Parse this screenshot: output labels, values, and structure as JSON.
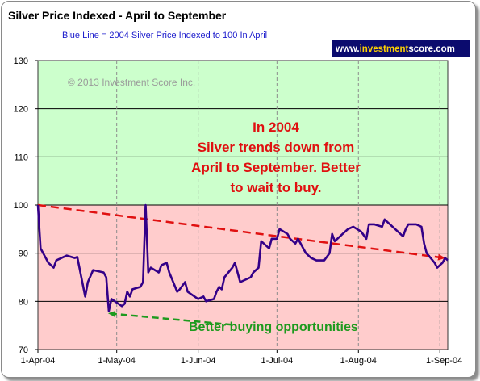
{
  "chart_data": {
    "type": "line",
    "title": "Silver Price Indexed - April to September",
    "subtitle": "Blue Line =  2004 Silver Price Indexed to 100 In April",
    "xlabel": "",
    "ylabel": "",
    "ylim": [
      70,
      130
    ],
    "yticks": [
      70,
      80,
      90,
      100,
      110,
      120,
      130
    ],
    "xlim": [
      "2004-04-01",
      "2004-09-04"
    ],
    "xticks": [
      {
        "date": "2004-04-01",
        "label": "1-Apr-04"
      },
      {
        "date": "2004-05-01",
        "label": "1-May-04"
      },
      {
        "date": "2004-06-01",
        "label": "1-Jun-04"
      },
      {
        "date": "2004-07-01",
        "label": "1-Jul-04"
      },
      {
        "date": "2004-08-01",
        "label": "1-Aug-04"
      },
      {
        "date": "2004-09-01",
        "label": "1-Sep-04"
      }
    ],
    "grid": true,
    "bands": [
      {
        "from": 100,
        "to": 130,
        "color": "#ccffcc"
      },
      {
        "from": 70,
        "to": 100,
        "color": "#ffcccc"
      }
    ],
    "series": [
      {
        "color": "#330088",
        "points": [
          [
            "2004-04-01",
            100
          ],
          [
            "2004-04-02",
            91
          ],
          [
            "2004-04-05",
            88
          ],
          [
            "2004-04-07",
            87
          ],
          [
            "2004-04-08",
            88.5
          ],
          [
            "2004-04-12",
            89.5
          ],
          [
            "2004-04-15",
            89
          ],
          [
            "2004-04-16",
            89.2
          ],
          [
            "2004-04-19",
            81
          ],
          [
            "2004-04-20",
            84
          ],
          [
            "2004-04-22",
            86.5
          ],
          [
            "2004-04-26",
            86
          ],
          [
            "2004-04-27",
            85
          ],
          [
            "2004-04-28",
            78
          ],
          [
            "2004-04-29",
            80.5
          ],
          [
            "2004-05-03",
            79
          ],
          [
            "2004-05-04",
            79.5
          ],
          [
            "2004-05-05",
            82
          ],
          [
            "2004-05-06",
            81
          ],
          [
            "2004-05-07",
            82.5
          ],
          [
            "2004-05-10",
            83
          ],
          [
            "2004-05-11",
            84
          ],
          [
            "2004-05-12",
            100
          ],
          [
            "2004-05-13",
            86
          ],
          [
            "2004-05-14",
            87
          ],
          [
            "2004-05-17",
            86
          ],
          [
            "2004-05-18",
            87.5
          ],
          [
            "2004-05-20",
            88
          ],
          [
            "2004-05-21",
            86
          ],
          [
            "2004-05-24",
            82
          ],
          [
            "2004-05-25",
            82.5
          ],
          [
            "2004-05-27",
            84
          ],
          [
            "2004-05-28",
            82
          ],
          [
            "2004-06-01",
            80.5
          ],
          [
            "2004-06-03",
            81
          ],
          [
            "2004-06-04",
            80
          ],
          [
            "2004-06-07",
            80.5
          ],
          [
            "2004-06-08",
            82
          ],
          [
            "2004-06-09",
            83
          ],
          [
            "2004-06-10",
            82.5
          ],
          [
            "2004-06-11",
            85
          ],
          [
            "2004-06-14",
            87
          ],
          [
            "2004-06-15",
            88
          ],
          [
            "2004-06-16",
            86
          ],
          [
            "2004-06-17",
            84
          ],
          [
            "2004-06-21",
            85
          ],
          [
            "2004-06-22",
            86
          ],
          [
            "2004-06-24",
            87
          ],
          [
            "2004-06-25",
            92.5
          ],
          [
            "2004-06-28",
            91
          ],
          [
            "2004-06-29",
            93
          ],
          [
            "2004-07-01",
            93
          ],
          [
            "2004-07-02",
            95
          ],
          [
            "2004-07-05",
            94
          ],
          [
            "2004-07-06",
            93
          ],
          [
            "2004-07-08",
            92
          ],
          [
            "2004-07-09",
            93
          ],
          [
            "2004-07-12",
            90
          ],
          [
            "2004-07-14",
            89
          ],
          [
            "2004-07-16",
            88.5
          ],
          [
            "2004-07-19",
            88.5
          ],
          [
            "2004-07-21",
            90
          ],
          [
            "2004-07-22",
            94
          ],
          [
            "2004-07-23",
            92.5
          ],
          [
            "2004-07-26",
            94
          ],
          [
            "2004-07-28",
            95
          ],
          [
            "2004-07-30",
            95.5
          ],
          [
            "2004-08-02",
            94.5
          ],
          [
            "2004-08-04",
            93
          ],
          [
            "2004-08-05",
            96
          ],
          [
            "2004-08-07",
            96
          ],
          [
            "2004-08-10",
            95.5
          ],
          [
            "2004-08-11",
            97
          ],
          [
            "2004-08-13",
            96
          ],
          [
            "2004-08-16",
            94.5
          ],
          [
            "2004-08-18",
            93.5
          ],
          [
            "2004-08-19",
            95
          ],
          [
            "2004-08-20",
            96
          ],
          [
            "2004-08-23",
            96
          ],
          [
            "2004-08-25",
            95.5
          ],
          [
            "2004-08-26",
            92
          ],
          [
            "2004-08-27",
            90
          ],
          [
            "2004-08-30",
            88
          ],
          [
            "2004-08-31",
            87
          ],
          [
            "2004-09-01",
            87.5
          ],
          [
            "2004-09-02",
            88
          ],
          [
            "2004-09-03",
            89
          ],
          [
            "2004-09-04",
            88.5
          ]
        ]
      }
    ],
    "trendline": {
      "from": [
        "2004-04-01",
        100
      ],
      "to": [
        "2004-09-04",
        89
      ],
      "color": "#e01010",
      "style": "dashed",
      "arrow": true
    },
    "annotations": {
      "main_lines": [
        "In 2004",
        "Silver trends down from",
        "April to September.  Better",
        "to wait to buy."
      ],
      "buying": "Better buying opportunities",
      "buying_arrow": {
        "from": [
          "2004-05-11",
          77.5
        ],
        "to": [
          "2004-04-28",
          77.5
        ]
      },
      "copyright": "© 2013 Investment Score Inc."
    },
    "brand": {
      "prefix": "www.",
      "accent": "investment",
      "rest": "score.com"
    }
  }
}
